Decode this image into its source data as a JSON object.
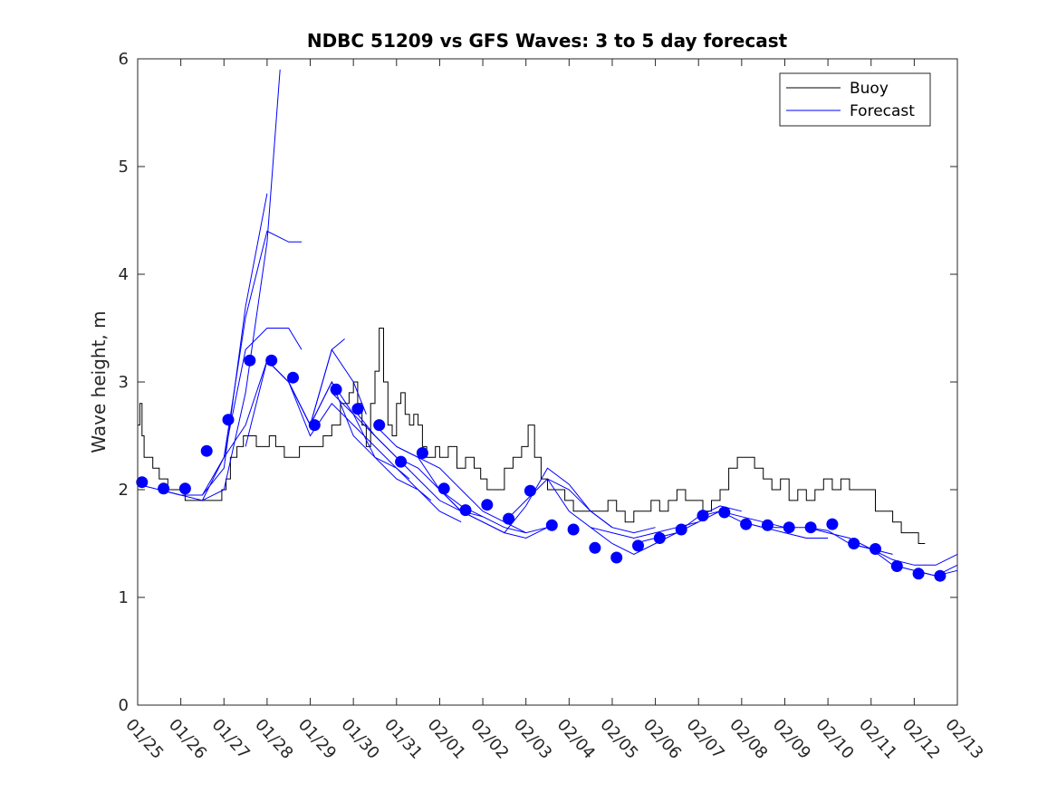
{
  "chart_data": {
    "type": "line",
    "title": "NDBC 51209 vs GFS Waves: 3 to 5 day forecast",
    "xlabel": "",
    "ylabel": "Wave height, m",
    "ylim": [
      0,
      6
    ],
    "xlim": [
      0,
      19
    ],
    "y_ticks": [
      0,
      1,
      2,
      3,
      4,
      5,
      6
    ],
    "x_tick_labels": [
      "01/25",
      "01/26",
      "01/27",
      "01/28",
      "01/29",
      "01/30",
      "01/31",
      "02/01",
      "02/02",
      "02/03",
      "02/04",
      "02/05",
      "02/06",
      "02/07",
      "02/08",
      "02/09",
      "02/10",
      "02/11",
      "02/12",
      "02/13"
    ],
    "legend": {
      "position": "top-right",
      "entries": [
        {
          "label": "Buoy",
          "color": "#000000"
        },
        {
          "label": "Forecast",
          "color": "#0000ff"
        }
      ]
    },
    "colors": {
      "buoy": "#000000",
      "forecast": "#0000ff"
    },
    "series": [
      {
        "name": "Buoy",
        "x": [
          0.0,
          0.05,
          0.1,
          0.15,
          0.25,
          0.35,
          0.5,
          0.7,
          0.9,
          1.1,
          1.3,
          1.5,
          1.7,
          1.85,
          1.95,
          2.05,
          2.15,
          2.3,
          2.45,
          2.6,
          2.75,
          2.9,
          3.05,
          3.2,
          3.4,
          3.6,
          3.75,
          3.9,
          4.1,
          4.3,
          4.5,
          4.7,
          4.9,
          5.0,
          5.1,
          5.2,
          5.3,
          5.4,
          5.5,
          5.6,
          5.7,
          5.8,
          5.9,
          6.0,
          6.1,
          6.2,
          6.3,
          6.4,
          6.5,
          6.6,
          6.7,
          6.8,
          6.9,
          7.0,
          7.2,
          7.4,
          7.6,
          7.8,
          7.95,
          8.1,
          8.3,
          8.5,
          8.7,
          8.9,
          9.05,
          9.2,
          9.35,
          9.5,
          9.7,
          9.9,
          10.1,
          10.3,
          10.5,
          10.7,
          10.9,
          11.1,
          11.3,
          11.5,
          11.7,
          11.9,
          12.1,
          12.3,
          12.5,
          12.7,
          12.9,
          13.1,
          13.3,
          13.5,
          13.7,
          13.9,
          14.1,
          14.3,
          14.5,
          14.7,
          14.9,
          15.1,
          15.3,
          15.5,
          15.7,
          15.9,
          16.1,
          16.3,
          16.5,
          16.7,
          16.9,
          17.1,
          17.3,
          17.5,
          17.7,
          17.9,
          18.1,
          18.25
        ],
        "values": [
          2.6,
          2.8,
          2.5,
          2.3,
          2.3,
          2.2,
          2.1,
          2.0,
          2.0,
          1.9,
          1.9,
          1.9,
          1.9,
          1.9,
          2.0,
          2.1,
          2.3,
          2.4,
          2.5,
          2.5,
          2.4,
          2.4,
          2.5,
          2.4,
          2.3,
          2.3,
          2.4,
          2.4,
          2.4,
          2.5,
          2.6,
          2.8,
          2.9,
          3.0,
          2.8,
          2.6,
          2.4,
          2.8,
          3.1,
          3.5,
          3.0,
          2.6,
          2.5,
          2.8,
          2.9,
          2.7,
          2.6,
          2.7,
          2.6,
          2.4,
          2.3,
          2.3,
          2.4,
          2.3,
          2.4,
          2.2,
          2.3,
          2.2,
          2.1,
          2.0,
          2.0,
          2.2,
          2.3,
          2.4,
          2.6,
          2.3,
          2.1,
          2.0,
          2.0,
          1.9,
          1.8,
          1.8,
          1.8,
          1.8,
          1.9,
          1.8,
          1.7,
          1.8,
          1.8,
          1.9,
          1.8,
          1.9,
          2.0,
          1.9,
          1.9,
          1.8,
          1.9,
          2.0,
          2.2,
          2.3,
          2.3,
          2.2,
          2.1,
          2.0,
          2.1,
          1.9,
          2.0,
          1.9,
          2.0,
          2.1,
          2.0,
          2.1,
          2.0,
          2.0,
          2.0,
          1.8,
          1.8,
          1.7,
          1.6,
          1.6,
          1.5,
          1.5
        ]
      },
      {
        "name": "Forecast",
        "x": [
          0.0,
          0.5,
          1.0,
          1.5,
          2.0,
          2.5,
          3.0
        ],
        "values": [
          2.05,
          2.0,
          1.95,
          1.95,
          2.2,
          3.7,
          4.75
        ]
      },
      {
        "name": "Forecast",
        "x": [
          0.5,
          1.0,
          1.5,
          2.0,
          2.5,
          3.0,
          3.3
        ],
        "values": [
          2.0,
          1.95,
          1.9,
          2.0,
          2.9,
          4.3,
          5.9
        ]
      },
      {
        "name": "Forecast",
        "x": [
          1.0,
          1.5,
          2.0,
          2.5,
          3.0,
          3.5,
          3.8
        ],
        "values": [
          1.95,
          1.95,
          2.3,
          3.6,
          4.4,
          4.3,
          4.3
        ]
      },
      {
        "name": "Forecast",
        "x": [
          1.5,
          2.0,
          2.5,
          3.0,
          3.5,
          3.8
        ],
        "values": [
          1.9,
          2.3,
          3.3,
          3.5,
          3.5,
          3.3
        ]
      },
      {
        "name": "Forecast",
        "x": [
          2.0,
          2.5,
          3.0,
          3.5,
          4.0,
          4.5,
          4.8
        ],
        "values": [
          2.3,
          2.6,
          3.2,
          3.0,
          2.6,
          3.3,
          3.4
        ]
      },
      {
        "name": "Forecast",
        "x": [
          2.5,
          3.0,
          3.5,
          4.0,
          4.5,
          5.0,
          5.3
        ],
        "values": [
          2.4,
          3.2,
          3.0,
          2.6,
          3.3,
          3.0,
          2.7
        ]
      },
      {
        "name": "Forecast",
        "x": [
          3.0,
          3.5,
          4.0,
          4.5,
          5.0,
          5.5,
          6.0,
          6.3
        ],
        "values": [
          3.2,
          3.0,
          2.5,
          2.8,
          2.6,
          2.4,
          2.2,
          2.1
        ]
      },
      {
        "name": "Forecast",
        "x": [
          3.5,
          4.0,
          4.5,
          5.0,
          5.5,
          6.0,
          6.5,
          6.8
        ],
        "values": [
          3.0,
          2.6,
          3.0,
          2.5,
          2.3,
          2.1,
          2.0,
          1.9
        ]
      },
      {
        "name": "Forecast",
        "x": [
          4.0,
          4.5,
          5.0,
          5.5,
          6.0,
          6.5,
          7.0,
          7.5
        ],
        "values": [
          2.6,
          3.0,
          2.7,
          2.3,
          2.2,
          2.0,
          1.8,
          1.7
        ]
      },
      {
        "name": "Forecast",
        "x": [
          4.5,
          5.0,
          5.5,
          6.0,
          6.5,
          7.0,
          7.5,
          8.0
        ],
        "values": [
          2.9,
          2.7,
          2.5,
          2.3,
          2.1,
          1.9,
          1.8,
          1.75
        ]
      },
      {
        "name": "Forecast",
        "x": [
          5.0,
          5.5,
          6.0,
          6.5,
          7.0,
          7.5,
          8.0,
          8.5,
          9.0
        ],
        "values": [
          2.75,
          2.5,
          2.3,
          2.2,
          2.0,
          1.85,
          1.75,
          1.65,
          1.6
        ]
      },
      {
        "name": "Forecast",
        "x": [
          5.5,
          6.0,
          6.5,
          7.0,
          7.5,
          8.0,
          8.5,
          9.0,
          9.5
        ],
        "values": [
          2.6,
          2.4,
          2.3,
          2.0,
          1.8,
          1.7,
          1.6,
          1.55,
          1.65
        ]
      },
      {
        "name": "Forecast",
        "x": [
          6.0,
          6.5,
          7.0,
          7.5,
          8.0,
          8.5,
          9.0,
          9.5
        ],
        "values": [
          2.4,
          2.3,
          2.2,
          2.0,
          1.8,
          1.7,
          1.6,
          1.65
        ]
      },
      {
        "name": "Forecast",
        "x": [
          7.0,
          7.5,
          8.0,
          8.5,
          9.0,
          9.5,
          10.0,
          10.5,
          11.0
        ],
        "values": [
          2.0,
          1.8,
          1.7,
          1.6,
          1.85,
          2.2,
          2.05,
          1.8,
          1.65
        ]
      },
      {
        "name": "Forecast",
        "x": [
          8.5,
          9.0,
          9.5,
          10.0,
          10.5,
          11.0,
          11.5,
          12.0
        ],
        "values": [
          1.7,
          1.9,
          2.1,
          2.0,
          1.8,
          1.65,
          1.6,
          1.65
        ]
      },
      {
        "name": "Forecast",
        "x": [
          9.5,
          10.0,
          10.5,
          11.0,
          11.5,
          12.0,
          12.5,
          13.0
        ],
        "values": [
          2.1,
          1.8,
          1.65,
          1.6,
          1.55,
          1.6,
          1.65,
          1.7
        ]
      },
      {
        "name": "Forecast",
        "x": [
          10.5,
          11.0,
          11.5,
          12.0,
          12.5,
          13.0,
          13.5,
          14.0
        ],
        "values": [
          1.65,
          1.5,
          1.4,
          1.5,
          1.6,
          1.75,
          1.85,
          1.8
        ]
      },
      {
        "name": "Forecast",
        "x": [
          11.5,
          12.0,
          12.5,
          13.0,
          13.5,
          14.0,
          14.5,
          15.0
        ],
        "values": [
          1.5,
          1.55,
          1.6,
          1.7,
          1.8,
          1.75,
          1.7,
          1.65
        ]
      },
      {
        "name": "Forecast",
        "x": [
          13.0,
          13.5,
          14.0,
          14.5,
          15.0,
          15.5,
          16.0
        ],
        "values": [
          1.75,
          1.8,
          1.7,
          1.65,
          1.6,
          1.55,
          1.55
        ]
      },
      {
        "name": "Forecast",
        "x": [
          14.0,
          14.5,
          15.0,
          15.5,
          16.0,
          16.5,
          17.0,
          17.5
        ],
        "values": [
          1.7,
          1.65,
          1.65,
          1.65,
          1.6,
          1.55,
          1.45,
          1.4
        ]
      },
      {
        "name": "Forecast",
        "x": [
          15.5,
          16.0,
          16.5,
          17.0,
          17.5,
          18.0,
          18.5,
          19.0
        ],
        "values": [
          1.65,
          1.62,
          1.5,
          1.45,
          1.35,
          1.3,
          1.3,
          1.4
        ]
      },
      {
        "name": "Forecast",
        "x": [
          16.5,
          17.0,
          17.5,
          18.0,
          18.5,
          19.0
        ],
        "values": [
          1.5,
          1.45,
          1.3,
          1.25,
          1.2,
          1.3
        ]
      },
      {
        "name": "Forecast",
        "x": [
          17.5,
          18.0,
          18.5,
          19.0
        ],
        "values": [
          1.3,
          1.25,
          1.2,
          1.25
        ]
      }
    ],
    "markers": {
      "name": "Forecast analysis points",
      "x": [
        0.1,
        0.6,
        1.1,
        1.6,
        2.1,
        2.6,
        3.1,
        3.6,
        4.1,
        4.6,
        5.1,
        5.6,
        6.1,
        6.6,
        7.1,
        7.6,
        8.1,
        8.6,
        9.1,
        9.6,
        10.1,
        10.6,
        11.1,
        11.6,
        12.1,
        12.6,
        13.1,
        13.6,
        14.1,
        14.6,
        15.1,
        15.6,
        16.1,
        16.6,
        17.1,
        17.6,
        18.1,
        18.6
      ],
      "values": [
        2.07,
        2.01,
        2.01,
        2.36,
        2.65,
        3.2,
        3.2,
        3.04,
        2.6,
        2.93,
        2.75,
        2.6,
        2.26,
        2.34,
        2.01,
        1.81,
        1.86,
        1.73,
        1.99,
        1.67,
        1.63,
        1.46,
        1.37,
        1.48,
        1.55,
        1.63,
        1.76,
        1.79,
        1.68,
        1.67,
        1.65,
        1.65,
        1.68,
        1.5,
        1.45,
        1.29,
        1.22,
        1.2
      ]
    }
  }
}
